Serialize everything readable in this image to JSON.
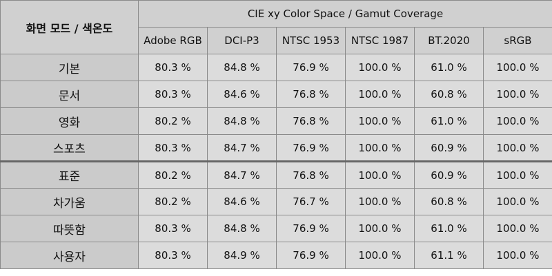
{
  "table": {
    "corner": "화면 모드 / 색온도",
    "group_header": "CIE xy Color Space / Gamut Coverage",
    "columns": [
      "Adobe RGB",
      "DCI-P3",
      "NTSC 1953",
      "NTSC 1987",
      "BT.2020",
      "sRGB"
    ],
    "sections": [
      [
        {
          "label": "기본",
          "cells": [
            "80.3 %",
            "84.8 %",
            "76.9 %",
            "100.0 %",
            "61.0 %",
            "100.0 %"
          ]
        },
        {
          "label": "문서",
          "cells": [
            "80.3 %",
            "84.6 %",
            "76.8 %",
            "100.0 %",
            "60.8 %",
            "100.0 %"
          ]
        },
        {
          "label": "영화",
          "cells": [
            "80.2 %",
            "84.8 %",
            "76.8 %",
            "100.0 %",
            "61.0 %",
            "100.0 %"
          ]
        },
        {
          "label": "스포츠",
          "cells": [
            "80.3 %",
            "84.7 %",
            "76.9 %",
            "100.0 %",
            "60.9 %",
            "100.0 %"
          ]
        }
      ],
      [
        {
          "label": "표준",
          "cells": [
            "80.2 %",
            "84.7 %",
            "76.8 %",
            "100.0 %",
            "60.9 %",
            "100.0 %"
          ]
        },
        {
          "label": "차가움",
          "cells": [
            "80.2 %",
            "84.6 %",
            "76.7 %",
            "100.0 %",
            "60.8 %",
            "100.0 %"
          ]
        },
        {
          "label": "따뜻함",
          "cells": [
            "80.3 %",
            "84.8 %",
            "76.9 %",
            "100.0 %",
            "61.0 %",
            "100.0 %"
          ]
        },
        {
          "label": "사용자",
          "cells": [
            "80.3 %",
            "84.9 %",
            "76.9 %",
            "100.0 %",
            "61.1 %",
            "100.0 %"
          ]
        }
      ]
    ]
  }
}
